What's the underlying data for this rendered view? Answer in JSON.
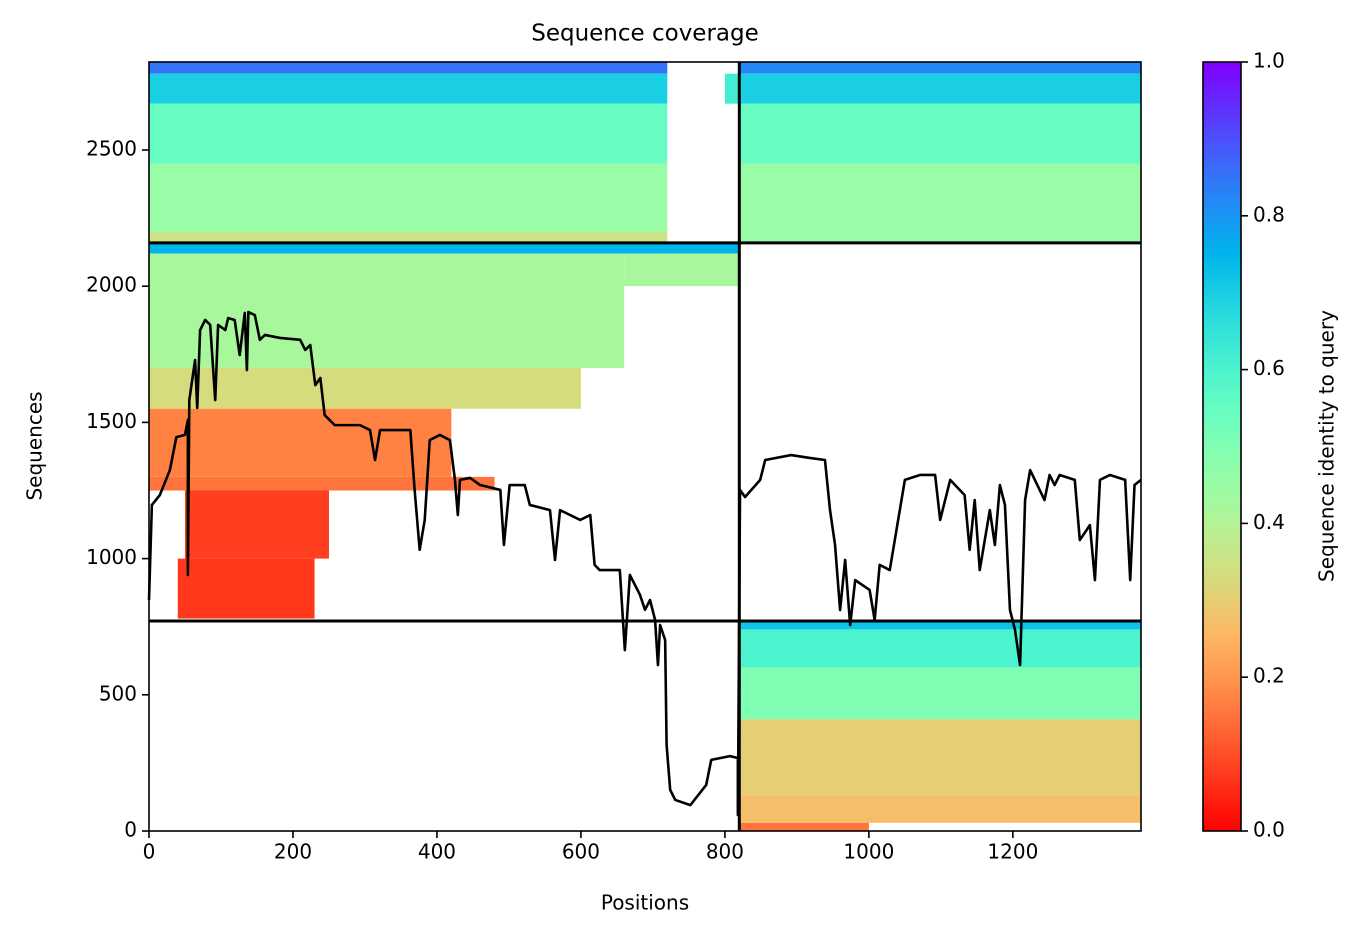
{
  "chart_data": {
    "type": "coverage-heatmap",
    "title": "Sequence coverage",
    "xlabel": "Positions",
    "ylabel": "Sequences",
    "xlim": [
      0,
      1378
    ],
    "ylim": [
      0,
      2823
    ],
    "xticks": [
      0,
      200,
      400,
      600,
      800,
      1000,
      1200
    ],
    "yticks": [
      0,
      500,
      1000,
      1500,
      2000,
      2500
    ],
    "colormap": "rainbow_r",
    "colorbar": {
      "label": "Sequence identity to query",
      "clim": [
        0,
        1
      ],
      "ticks": [
        {
          "value": 0,
          "label": "0.0"
        },
        0.2,
        0.4,
        0.6,
        0.8,
        {
          "value": 1,
          "label": "1.0"
        }
      ]
    },
    "boundaries": {
      "x": [
        820
      ],
      "y": [
        771,
        2159
      ],
      "color": "#000000"
    },
    "blocks": [
      {
        "x": [
          0,
          720
        ],
        "y": [
          2780,
          2823
        ],
        "value": 0.85
      },
      {
        "x": [
          0,
          720
        ],
        "y": [
          2670,
          2780
        ],
        "value": 0.7
      },
      {
        "x": [
          0,
          720
        ],
        "y": [
          2450,
          2670
        ],
        "value": 0.55
      },
      {
        "x": [
          0,
          720
        ],
        "y": [
          2200,
          2450
        ],
        "value": 0.45
      },
      {
        "x": [
          0,
          720
        ],
        "y": [
          2159,
          2200
        ],
        "value": 0.35
      },
      {
        "x": [
          800,
          820
        ],
        "y": [
          2670,
          2780
        ],
        "value": 0.62
      },
      {
        "x": [
          820,
          1378
        ],
        "y": [
          2780,
          2823
        ],
        "value": 0.82
      },
      {
        "x": [
          820,
          1378
        ],
        "y": [
          2670,
          2780
        ],
        "value": 0.7
      },
      {
        "x": [
          820,
          1378
        ],
        "y": [
          2450,
          2670
        ],
        "value": 0.55
      },
      {
        "x": [
          820,
          1378
        ],
        "y": [
          2159,
          2450
        ],
        "value": 0.45
      },
      {
        "x": [
          0,
          820
        ],
        "y": [
          2120,
          2159
        ],
        "value": 0.75
      },
      {
        "x": [
          0,
          660
        ],
        "y": [
          1700,
          2120
        ],
        "value": 0.42
      },
      {
        "x": [
          660,
          820
        ],
        "y": [
          2000,
          2120
        ],
        "value": 0.42
      },
      {
        "x": [
          0,
          600
        ],
        "y": [
          1550,
          1700
        ],
        "value": 0.33
      },
      {
        "x": [
          0,
          420
        ],
        "y": [
          1300,
          1550
        ],
        "value": 0.17
      },
      {
        "x": [
          0,
          480
        ],
        "y": [
          1250,
          1300
        ],
        "value": 0.15
      },
      {
        "x": [
          50,
          250
        ],
        "y": [
          1000,
          1250
        ],
        "value": 0.08
      },
      {
        "x": [
          40,
          230
        ],
        "y": [
          780,
          1000
        ],
        "value": 0.07
      },
      {
        "x": [
          820,
          1378
        ],
        "y": [
          740,
          771
        ],
        "value": 0.72
      },
      {
        "x": [
          820,
          1378
        ],
        "y": [
          600,
          740
        ],
        "value": 0.6
      },
      {
        "x": [
          820,
          1378
        ],
        "y": [
          410,
          600
        ],
        "value": 0.5
      },
      {
        "x": [
          820,
          1378
        ],
        "y": [
          130,
          410
        ],
        "value": 0.3
      },
      {
        "x": [
          820,
          1378
        ],
        "y": [
          30,
          130
        ],
        "value": 0.27
      },
      {
        "x": [
          820,
          1000
        ],
        "y": [
          0,
          30
        ],
        "value": 0.15
      }
    ],
    "coverage": {
      "color": "#000000",
      "x": [
        0,
        4,
        15,
        29,
        38,
        50,
        54,
        54,
        56,
        64,
        67,
        71,
        78,
        85,
        92,
        96,
        106,
        110,
        119,
        126,
        133,
        136,
        138,
        147,
        154,
        161,
        182,
        210,
        217,
        224,
        231,
        238,
        244,
        258,
        293,
        307,
        314,
        321,
        363,
        369,
        376,
        383,
        390,
        404,
        418,
        425,
        429,
        432,
        446,
        460,
        488,
        493,
        501,
        522,
        529,
        557,
        564,
        571,
        599,
        613,
        619,
        626,
        654,
        661,
        668,
        682,
        689,
        696,
        703,
        707,
        710,
        717,
        719,
        724,
        731,
        752,
        774,
        781,
        807,
        818,
        818,
        821,
        828,
        849,
        856,
        892,
        919,
        939,
        946,
        953,
        960,
        967,
        974,
        981,
        1001,
        1008,
        1015,
        1029,
        1050,
        1071,
        1092,
        1099,
        1113,
        1133,
        1140,
        1147,
        1154,
        1168,
        1175,
        1182,
        1189,
        1196,
        1203,
        1210,
        1217,
        1224,
        1244,
        1251,
        1258,
        1265,
        1286,
        1293,
        1307,
        1314,
        1321,
        1335,
        1356,
        1363,
        1369,
        1378
      ],
      "y": [
        848,
        1197,
        1233,
        1325,
        1446,
        1454,
        1509,
        940,
        1582,
        1729,
        1553,
        1839,
        1876,
        1858,
        1582,
        1858,
        1839,
        1883,
        1876,
        1747,
        1902,
        1692,
        1905,
        1894,
        1803,
        1821,
        1810,
        1803,
        1766,
        1784,
        1637,
        1663,
        1527,
        1490,
        1490,
        1472,
        1362,
        1472,
        1472,
        1252,
        1032,
        1142,
        1435,
        1454,
        1435,
        1289,
        1160,
        1289,
        1296,
        1270,
        1252,
        1050,
        1270,
        1270,
        1197,
        1178,
        995,
        1178,
        1142,
        1160,
        977,
        958,
        958,
        664,
        940,
        867,
        812,
        848,
        775,
        609,
        756,
        701,
        316,
        151,
        114,
        95,
        169,
        261,
        275,
        268,
        59,
        1252,
        1226,
        1289,
        1362,
        1380,
        1369,
        1362,
        1178,
        1050,
        811,
        995,
        756,
        921,
        885,
        775,
        977,
        958,
        1289,
        1307,
        1307,
        1142,
        1289,
        1233,
        1032,
        1215,
        958,
        1178,
        1050,
        1270,
        1197,
        811,
        738,
        609,
        1215,
        1325,
        1215,
        1307,
        1270,
        1307,
        1289,
        1068,
        1123,
        921,
        1289,
        1307,
        1289,
        921,
        1270,
        1289
      ]
    }
  }
}
